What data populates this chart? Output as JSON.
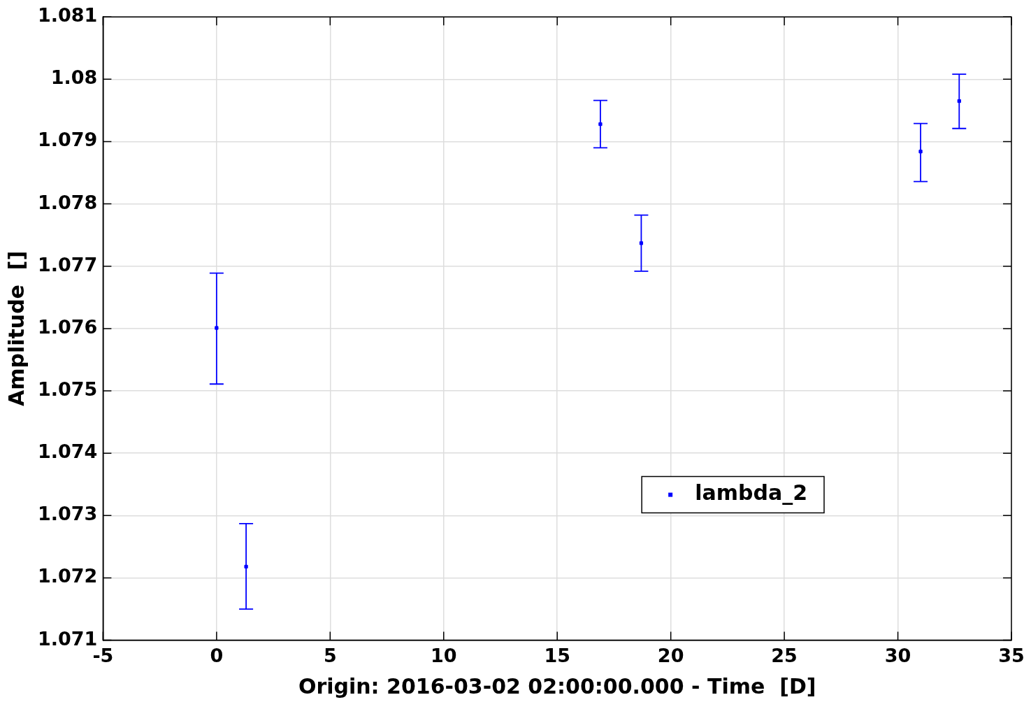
{
  "chart_data": {
    "type": "scatter",
    "xlabel": "Origin: 2016-03-02 02:00:00.000 - Time  [D]",
    "ylabel": "Amplitude  []",
    "xlim": [
      -5,
      35
    ],
    "xticks": [
      -5,
      0,
      5,
      10,
      15,
      20,
      25,
      30,
      35
    ],
    "ylim": [
      1.071,
      1.081
    ],
    "yticks": [
      1.071,
      1.072,
      1.073,
      1.074,
      1.075,
      1.076,
      1.077,
      1.078,
      1.079,
      1.08,
      1.081
    ],
    "grid": true,
    "legend": "bottom right",
    "marker": "square",
    "series": [
      {
        "name": "lambda_2",
        "color": "#0000ff",
        "x": [
          0,
          1.3,
          16.9,
          18.7,
          31.0,
          32.7
        ],
        "values": [
          1.07601,
          1.07218,
          1.07928,
          1.07737,
          1.07884,
          1.07965
        ],
        "errors": [
          [
            1.07511,
            1.07689
          ],
          [
            1.0715,
            1.07287
          ],
          [
            1.0789,
            1.07966
          ],
          [
            1.07692,
            1.07782
          ],
          [
            1.07836,
            1.07929
          ],
          [
            1.07921,
            1.08008
          ]
        ]
      }
    ]
  }
}
